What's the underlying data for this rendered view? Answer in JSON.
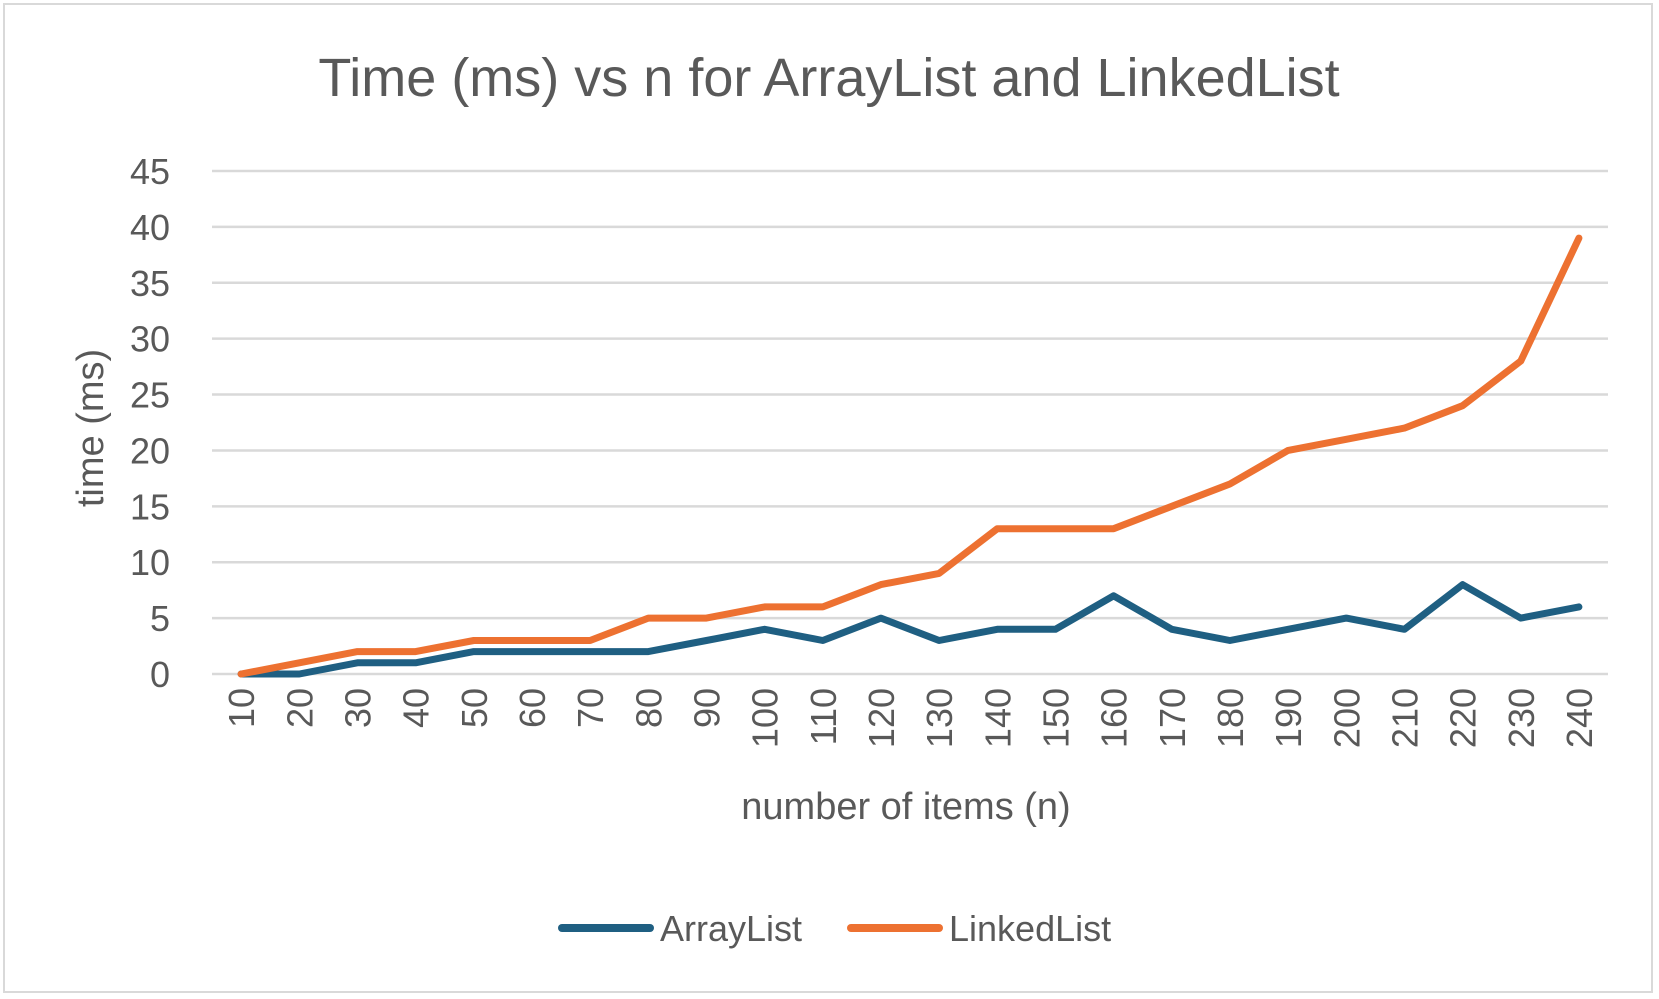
{
  "chart_data": {
    "type": "line",
    "title": "Time (ms) vs n for ArrayList and LinkedList",
    "xlabel": "number of items (n)",
    "ylabel": "time (ms)",
    "categories": [
      "10",
      "20",
      "30",
      "40",
      "50",
      "60",
      "70",
      "80",
      "90",
      "100",
      "110",
      "120",
      "130",
      "140",
      "150",
      "160",
      "170",
      "180",
      "190",
      "200",
      "210",
      "220",
      "230",
      "240"
    ],
    "ylim": [
      0,
      45
    ],
    "yticks": [
      "0",
      "5",
      "10",
      "15",
      "20",
      "25",
      "30",
      "35",
      "40",
      "45"
    ],
    "grid": true,
    "legend_position": "bottom",
    "series": [
      {
        "name": "ArrayList",
        "color": "#1f5f82",
        "values": [
          0,
          0,
          1,
          1,
          2,
          2,
          2,
          2,
          3,
          4,
          3,
          5,
          3,
          4,
          4,
          7,
          4,
          3,
          4,
          5,
          4,
          8,
          5,
          6
        ]
      },
      {
        "name": "LinkedList",
        "color": "#ed7131",
        "values": [
          0,
          1,
          2,
          2,
          3,
          3,
          3,
          5,
          5,
          6,
          6,
          8,
          9,
          13,
          13,
          13,
          15,
          17,
          20,
          21,
          22,
          24,
          28,
          39
        ]
      }
    ]
  }
}
